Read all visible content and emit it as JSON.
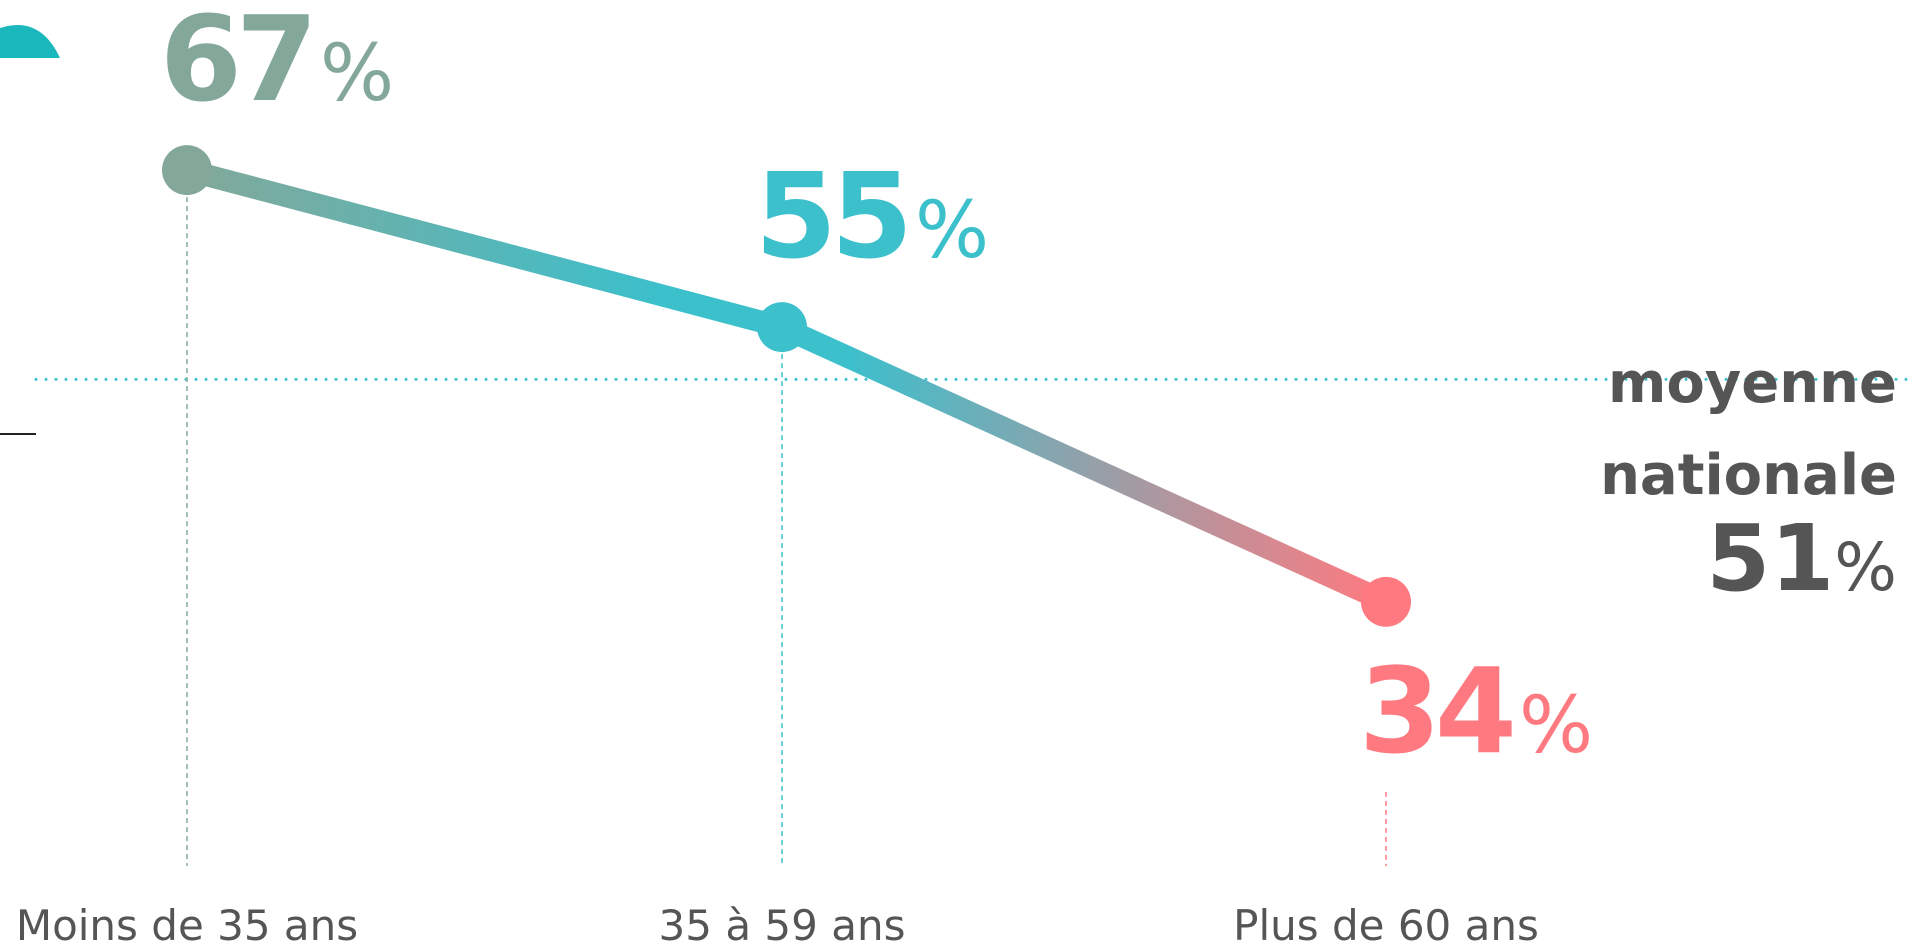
{
  "chart_data": {
    "type": "line",
    "categories": [
      "Moins de 35 ans",
      "35 à 59 ans",
      "Plus de 60 ans"
    ],
    "values": [
      67,
      55,
      34
    ],
    "value_suffix": "%",
    "colors": [
      "#83a899",
      "#3bc0cc",
      "#ff7a80"
    ],
    "ylim": [
      20,
      80
    ],
    "reference": {
      "label": [
        "moyenne",
        "nationale"
      ],
      "value": 51,
      "color": "#3bc0cc"
    }
  }
}
